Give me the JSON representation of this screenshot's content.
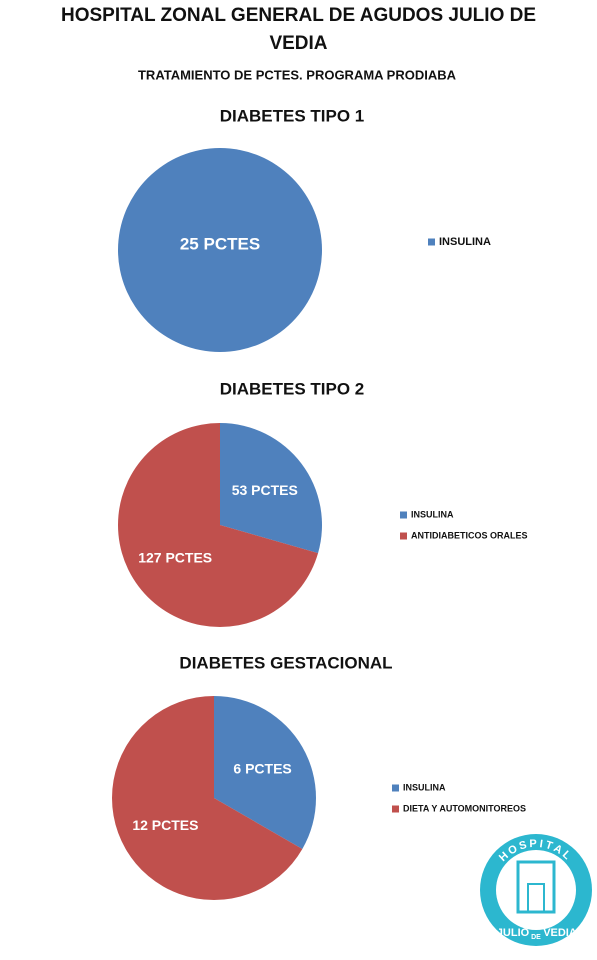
{
  "title": "HOSPITAL ZONAL GENERAL DE AGUDOS JULIO DE VEDIA",
  "subtitle": "TRATAMIENTO DE PCTES. PROGRAMA PRODIABA",
  "chart_data": [
    {
      "type": "pie",
      "title": "DIABETES TIPO 1",
      "categories": [
        "INSULINA"
      ],
      "values": [
        25
      ],
      "value_labels": [
        "25 PCTES"
      ],
      "colors": [
        "#4f81bd"
      ]
    },
    {
      "type": "pie",
      "title": "DIABETES TIPO 2",
      "categories": [
        "INSULINA",
        "ANTIDIABETICOS ORALES"
      ],
      "values": [
        53,
        127
      ],
      "value_labels": [
        "53 PCTES",
        "127 PCTES"
      ],
      "colors": [
        "#4f81bd",
        "#c0504d"
      ]
    },
    {
      "type": "pie",
      "title": "DIABETES GESTACIONAL",
      "categories": [
        "INSULINA",
        "DIETA Y AUTOMONITOREOS"
      ],
      "values": [
        6,
        12
      ],
      "value_labels": [
        "6 PCTES",
        "12 PCTES"
      ],
      "colors": [
        "#4f81bd",
        "#c0504d"
      ]
    }
  ],
  "logo": {
    "top": "HOSPITAL",
    "name1": "JULIO",
    "name2": "DE",
    "name3": "VEDIA"
  }
}
